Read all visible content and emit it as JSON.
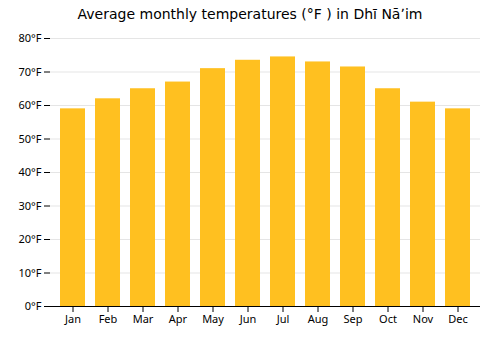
{
  "chart_data": {
    "type": "bar",
    "title": "Average monthly temperatures (°F ) in Dhī Nāʼim",
    "categories": [
      "Jan",
      "Feb",
      "Mar",
      "Apr",
      "May",
      "Jun",
      "Jul",
      "Aug",
      "Sep",
      "Oct",
      "Nov",
      "Dec"
    ],
    "values": [
      59,
      62,
      65,
      67,
      71,
      73.5,
      74.5,
      73,
      71.5,
      65,
      61,
      59
    ],
    "color": "#FFC020",
    "ylim": [
      0,
      80
    ],
    "yticks": [
      {
        "value": 0,
        "label": "0°F"
      },
      {
        "value": 10,
        "label": "10°F"
      },
      {
        "value": 20,
        "label": "20°F"
      },
      {
        "value": 30,
        "label": "30°F"
      },
      {
        "value": 40,
        "label": "40°F"
      },
      {
        "value": 50,
        "label": "50°F"
      },
      {
        "value": 60,
        "label": "60°F"
      },
      {
        "value": 70,
        "label": "70°F"
      },
      {
        "value": 80,
        "label": "80°F"
      }
    ],
    "grid": true
  }
}
